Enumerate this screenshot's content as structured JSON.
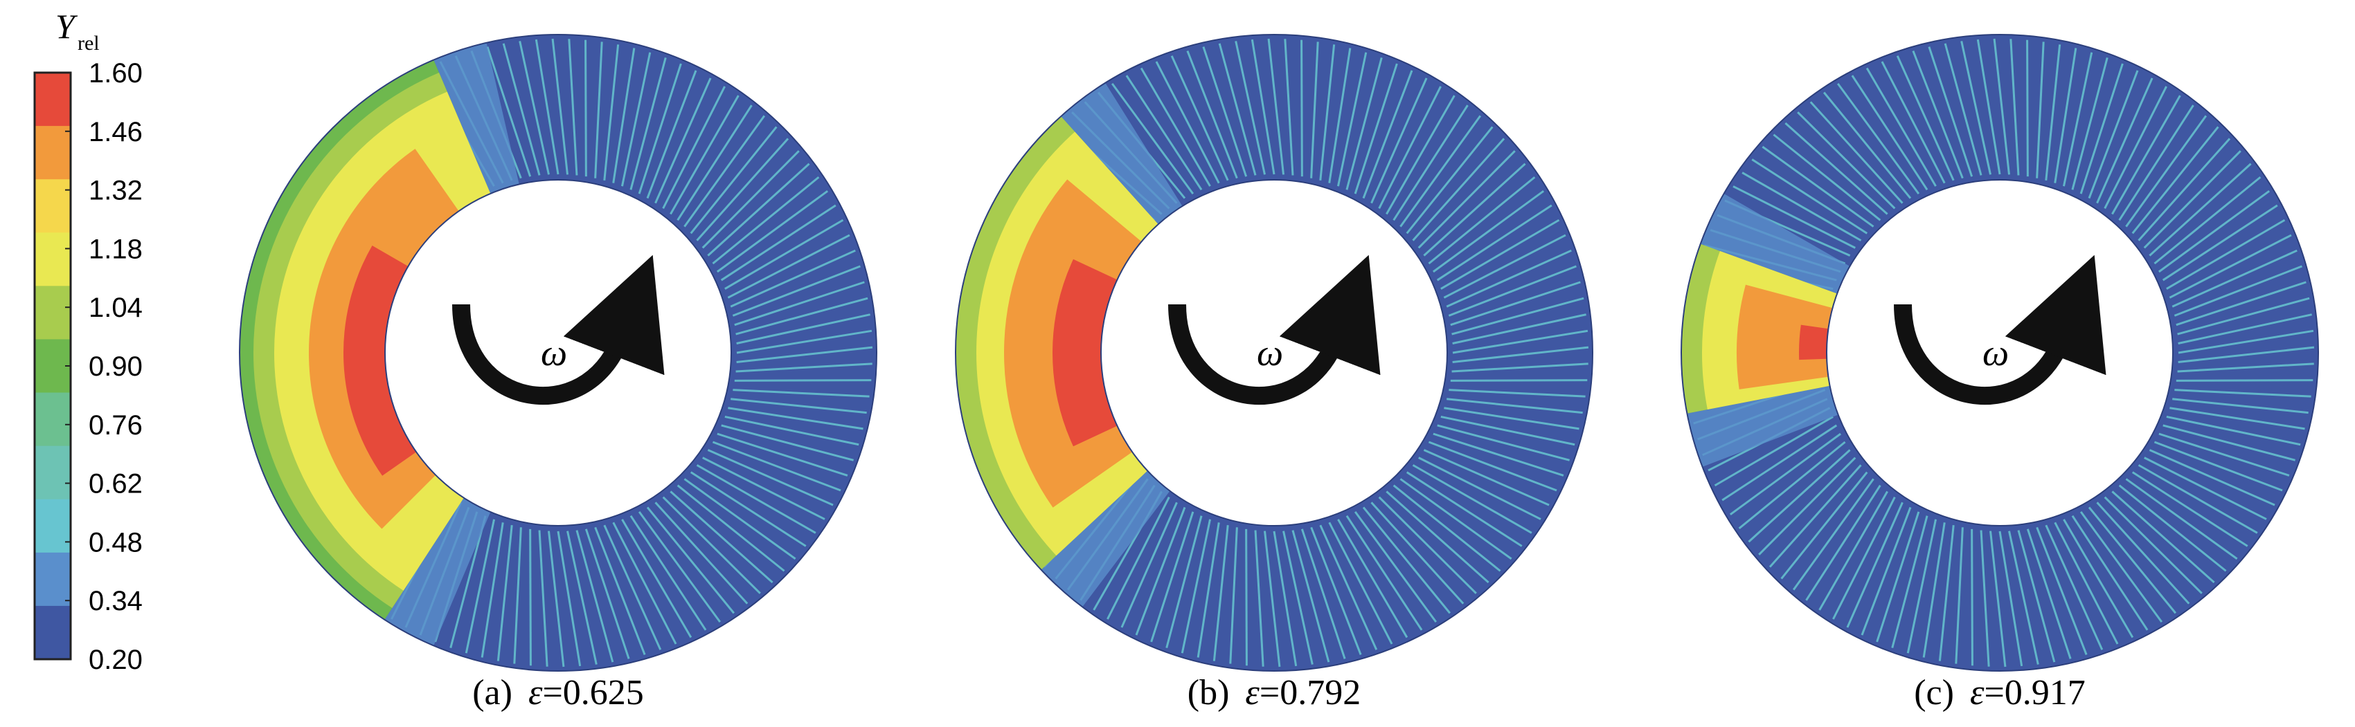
{
  "colorbar": {
    "symbol": "Y",
    "subscript": "rel",
    "ticks": [
      "1.60",
      "1.46",
      "1.32",
      "1.18",
      "1.04",
      "0.90",
      "0.76",
      "0.62",
      "0.48",
      "0.34",
      "0.20"
    ],
    "bands": [
      "#e64a3a",
      "#f29a3c",
      "#f5d74c",
      "#e9e852",
      "#a8cc4e",
      "#6eb84e",
      "#6cc090",
      "#6dc3b4",
      "#67c5d0",
      "#5a8fcc",
      "#3f57a2"
    ]
  },
  "panels": [
    {
      "label": "(a)",
      "symbol": "ε",
      "value": "=0.625",
      "omega": "ω"
    },
    {
      "label": "(b)",
      "symbol": "ε",
      "value": "=0.792",
      "omega": "ω"
    },
    {
      "label": "(c)",
      "symbol": "ε",
      "value": "=0.917",
      "omega": "ω"
    }
  ],
  "colors": {
    "passage_blue": "#3f57a2",
    "blade_wake": "#67c5d0",
    "arrow": "#111111"
  }
}
